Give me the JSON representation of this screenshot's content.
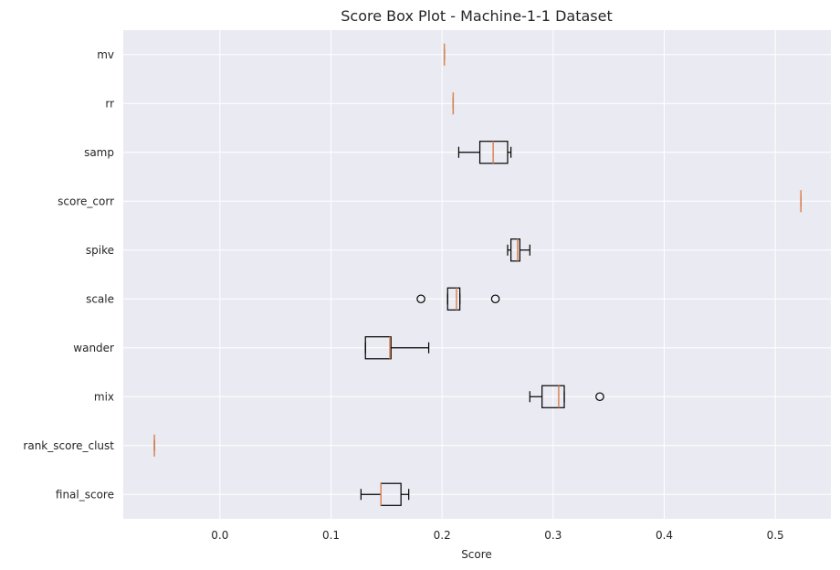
{
  "chart_data": {
    "type": "box",
    "orientation": "horizontal",
    "title": "Score Box Plot - Machine-1-1 Dataset",
    "xlabel": "Score",
    "ylabel": "",
    "xlim": [
      -0.087,
      0.55
    ],
    "xticks": [
      0.0,
      0.1,
      0.2,
      0.3,
      0.4,
      0.5
    ],
    "xtick_labels": [
      "0.0",
      "0.1",
      "0.2",
      "0.3",
      "0.4",
      "0.5"
    ],
    "grid": true,
    "background_color": "#eaeaf2",
    "box_edge_color": "#000000",
    "median_color": "#dd8452",
    "categories": [
      "mv",
      "rr",
      "samp",
      "score_corr",
      "spike",
      "scale",
      "wander",
      "mix",
      "rank_score_clust",
      "final_score"
    ],
    "series": [
      {
        "category": "mv",
        "whisker_low": 0.202,
        "q1": 0.202,
        "median": 0.202,
        "q3": 0.202,
        "whisker_high": 0.202,
        "outliers": []
      },
      {
        "category": "rr",
        "whisker_low": 0.21,
        "q1": 0.21,
        "median": 0.21,
        "q3": 0.21,
        "whisker_high": 0.21,
        "outliers": []
      },
      {
        "category": "samp",
        "whisker_low": 0.215,
        "q1": 0.234,
        "median": 0.246,
        "q3": 0.259,
        "whisker_high": 0.262,
        "outliers": []
      },
      {
        "category": "score_corr",
        "whisker_low": 0.523,
        "q1": 0.523,
        "median": 0.523,
        "q3": 0.523,
        "whisker_high": 0.523,
        "outliers": []
      },
      {
        "category": "spike",
        "whisker_low": 0.259,
        "q1": 0.262,
        "median": 0.268,
        "q3": 0.27,
        "whisker_high": 0.279,
        "outliers": []
      },
      {
        "category": "scale",
        "whisker_low": 0.205,
        "q1": 0.205,
        "median": 0.213,
        "q3": 0.216,
        "whisker_high": 0.216,
        "outliers": [
          0.181,
          0.248
        ]
      },
      {
        "category": "wander",
        "whisker_low": 0.131,
        "q1": 0.131,
        "median": 0.153,
        "q3": 0.154,
        "whisker_high": 0.188,
        "outliers": []
      },
      {
        "category": "mix",
        "whisker_low": 0.279,
        "q1": 0.29,
        "median": 0.305,
        "q3": 0.31,
        "whisker_high": 0.31,
        "outliers": [
          0.342
        ]
      },
      {
        "category": "rank_score_clust",
        "whisker_low": -0.059,
        "q1": -0.059,
        "median": -0.059,
        "q3": -0.059,
        "whisker_high": -0.059,
        "outliers": []
      },
      {
        "category": "final_score",
        "whisker_low": 0.127,
        "q1": 0.145,
        "median": 0.145,
        "q3": 0.163,
        "whisker_high": 0.17,
        "outliers": []
      }
    ]
  }
}
